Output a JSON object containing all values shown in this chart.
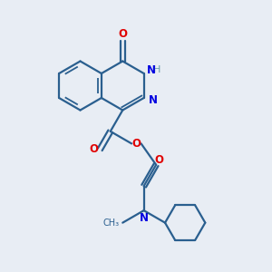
{
  "background_color": "#e8edf4",
  "bond_color": "#2a5f8f",
  "atom_colors": {
    "O": "#e00000",
    "N": "#0000e0",
    "H": "#6a9aaa",
    "C": "#2a5f8f"
  },
  "figsize": [
    3.0,
    3.0
  ],
  "dpi": 100,
  "bond_lw": 1.6,
  "inner_lw": 1.3,
  "double_sep": 0.01,
  "label_fontsize": 8.5
}
